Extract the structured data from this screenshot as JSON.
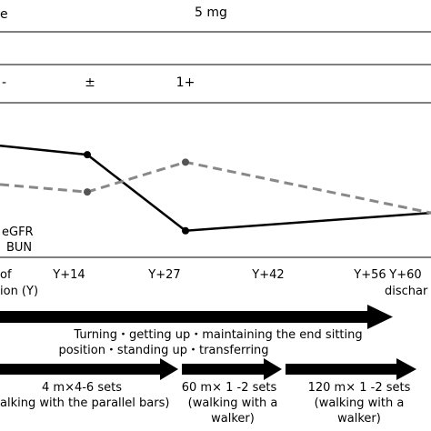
{
  "header": {
    "top_left_fragment": "e",
    "dose_label": "5 mg"
  },
  "urine_protein": {
    "first_fragment": "-",
    "at_y14": "±",
    "at_y27": "1+"
  },
  "chart_data": {
    "type": "line",
    "x": [
      "",
      "Y+14",
      "Y+27",
      ""
    ],
    "series": [
      {
        "name": "eGFR",
        "style": "solid",
        "color": "#000000",
        "values": [
          0.73,
          0.67,
          0.16,
          0.28
        ]
      },
      {
        "name": "BUN",
        "style": "dashed",
        "color": "#888888",
        "values": [
          0.47,
          0.42,
          0.62,
          0.28
        ]
      }
    ],
    "xlabel": "",
    "ylabel": "",
    "legend": [
      "eGFR",
      "BUN"
    ],
    "legend_placement": "bottom-left",
    "grid": false
  },
  "axis": {
    "ticks": [
      "Y+14",
      "Y+27",
      "Y+42",
      "Y+56",
      "Y+60"
    ],
    "left_label_line1": "of",
    "left_label_line2": "ion (Y)",
    "discharge_fragment": "dischar"
  },
  "rehab": {
    "main_arrow_line1": "Turning・getting up・maintaining the end sitting",
    "main_arrow_line2": "position・standing up・transferring",
    "walk1_line1": "4 m×4-6 sets",
    "walk1_line2": "alking with the parallel bars)",
    "walk2_line1": "60 m× 1 -2 sets",
    "walk2_line2": "(walking with a",
    "walk2_line3": "walker)",
    "walk3_line1": "120 m× 1 -2 sets",
    "walk3_line2": "(walking with a",
    "walk3_line3": "walker)"
  }
}
